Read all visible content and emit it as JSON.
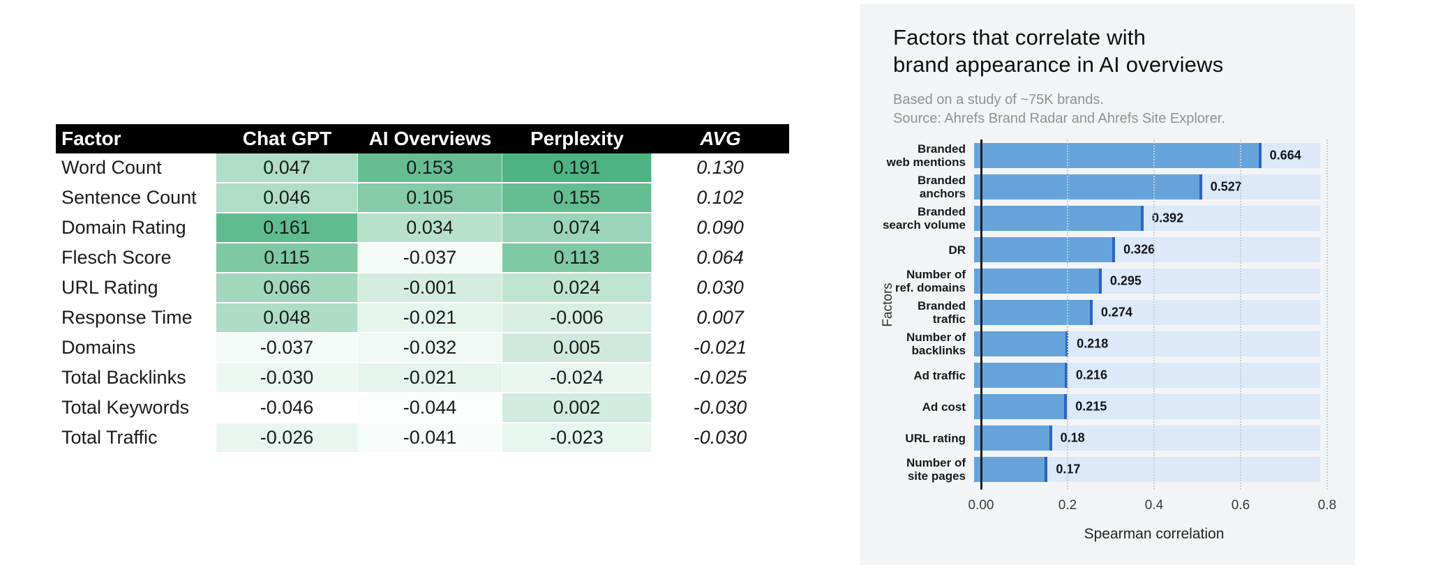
{
  "colors": {
    "heat_min_color": "#ffffff",
    "heat_max_color": "#4db381",
    "table_header_bg": "#000000",
    "bar_fill": "#66a3db",
    "bar_edge": "#2c63c4",
    "bar_track": "#dbe9f9",
    "panel_bg": "#f3f4f5"
  },
  "chart_data": [
    {
      "type": "table",
      "columns": [
        "Factor",
        "Chat GPT",
        "AI Overviews",
        "Perplexity",
        "AVG"
      ],
      "rows": [
        [
          "Word Count",
          "0.047",
          "0.153",
          "0.191",
          "0.130"
        ],
        [
          "Sentence Count",
          "0.046",
          "0.105",
          "0.155",
          "0.102"
        ],
        [
          "Domain Rating",
          "0.161",
          "0.034",
          "0.074",
          "0.090"
        ],
        [
          "Flesch Score",
          "0.115",
          "-0.037",
          "0.113",
          "0.064"
        ],
        [
          "URL Rating",
          "0.066",
          "-0.001",
          "0.024",
          "0.030"
        ],
        [
          "Response Time",
          "0.048",
          "-0.021",
          "-0.006",
          "0.007"
        ],
        [
          "Domains",
          "-0.037",
          "-0.032",
          "0.005",
          "-0.021"
        ],
        [
          "Total Backlinks",
          "-0.030",
          "-0.021",
          "-0.024",
          "-0.025"
        ],
        [
          "Total Keywords",
          "-0.046",
          "-0.044",
          "0.002",
          "-0.030"
        ],
        [
          "Total Traffic",
          "-0.026",
          "-0.041",
          "-0.023",
          "-0.030"
        ]
      ],
      "heatmap": {
        "min": -0.046,
        "max": 0.191,
        "gamma": 0.85,
        "applies_to_columns": [
          1,
          2,
          3
        ]
      }
    },
    {
      "type": "bar",
      "orientation": "horizontal",
      "title": "Factors that correlate with\nbrand appearance in AI overviews",
      "subtitle": "Based on a study of ~75K brands.\nSource: Ahrefs Brand Radar and Ahrefs Site Explorer.",
      "categories": [
        "Branded\nweb mentions",
        "Branded\nanchors",
        "Branded\nsearch volume",
        "DR",
        "Number of\nref. domains",
        "Branded\ntraffic",
        "Number of\nbacklinks",
        "Ad traffic",
        "Ad cost",
        "URL rating",
        "Number of\nsite pages"
      ],
      "values": [
        0.664,
        0.527,
        0.392,
        0.326,
        0.295,
        0.274,
        0.218,
        0.216,
        0.215,
        0.18,
        0.17
      ],
      "value_labels": [
        "0.664",
        "0.527",
        "0.392",
        "0.326",
        "0.295",
        "0.274",
        "0.218",
        "0.216",
        "0.215",
        "0.18",
        "0.17"
      ],
      "xlabel": "Spearman correlation",
      "ylabel": "Factors",
      "xlim": [
        0,
        0.8
      ],
      "xticks": [
        "0.00",
        "0.2",
        "0.4",
        "0.6",
        "0.8"
      ],
      "grid": "dotted-vertical",
      "legend": "none"
    }
  ]
}
